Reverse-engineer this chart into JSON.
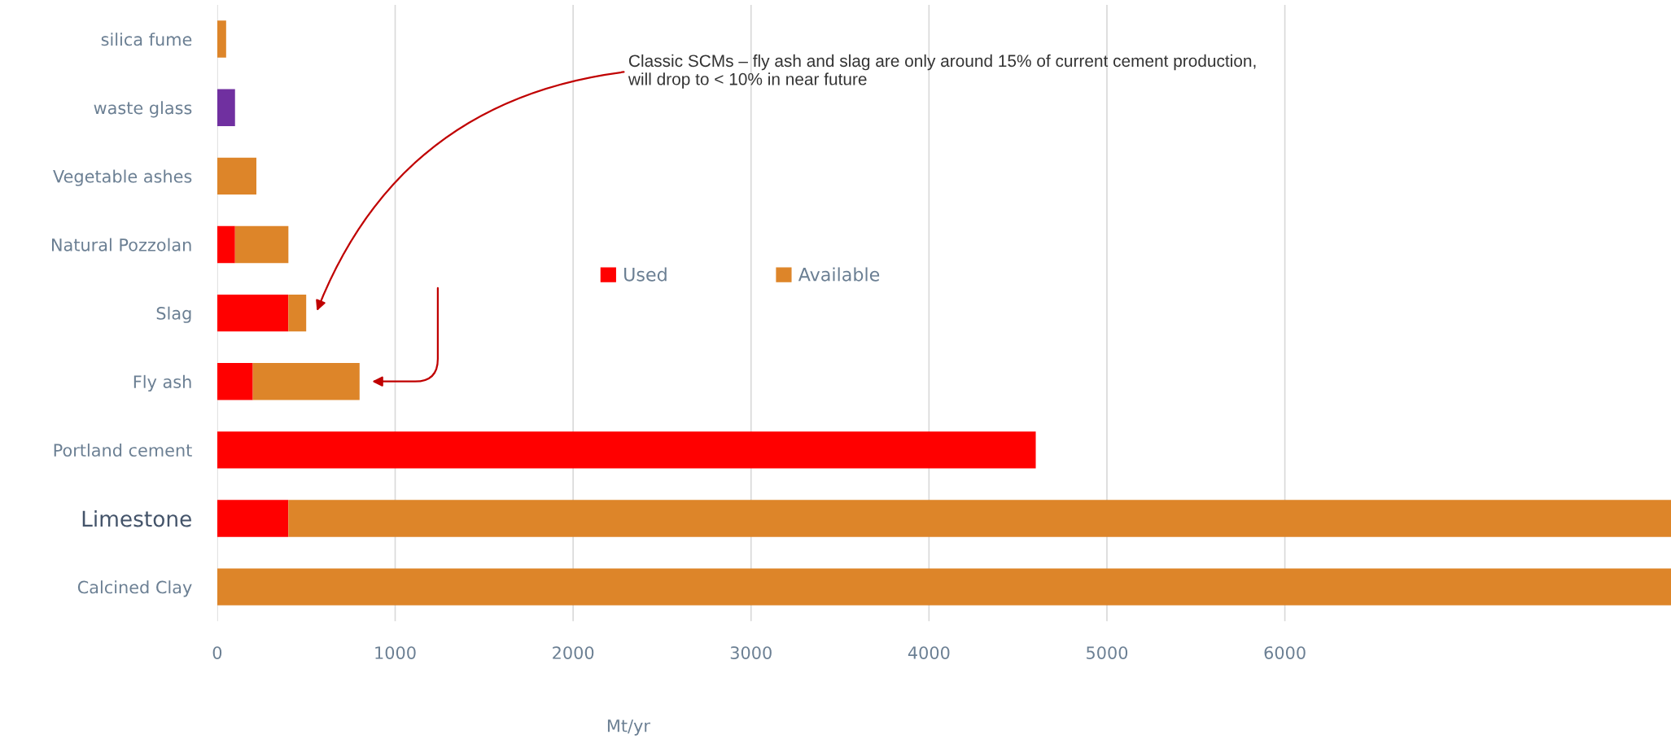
{
  "chart_data": {
    "type": "bar",
    "orientation": "horizontal",
    "stacked": true,
    "categories": [
      "silica fume",
      "waste glass",
      "Vegetable ashes",
      "Natural Pozzolan",
      "Slag",
      "Fly ash",
      "Portland cement",
      "Limestone",
      "Calcined Clay"
    ],
    "series": [
      {
        "name": "Used",
        "color": "#ff0000",
        "values": [
          null,
          null,
          null,
          100,
          400,
          200,
          4600,
          400,
          null
        ]
      },
      {
        "name": "Available",
        "color": "#dd8529",
        "colors": [
          "#dd8529",
          "#7030a0",
          "#dd8529",
          "#dd8529",
          "#dd8529",
          "#dd8529",
          "#dd8529",
          "#dd8529",
          "#dd8529"
        ],
        "values": [
          50,
          100,
          220,
          300,
          100,
          600,
          null,
          7770,
          8170
        ]
      }
    ],
    "xlabel": "Mt/yr",
    "xlim": [
      0,
      8170
    ],
    "xticks": [
      0,
      1000,
      2000,
      3000,
      4000,
      5000,
      6000
    ],
    "grid": "x",
    "legend": "center",
    "annotations": [
      "Classic SCMs – fly ash and slag are only around 15% of current cement production,\nwill drop to < 10% in near future"
    ]
  }
}
